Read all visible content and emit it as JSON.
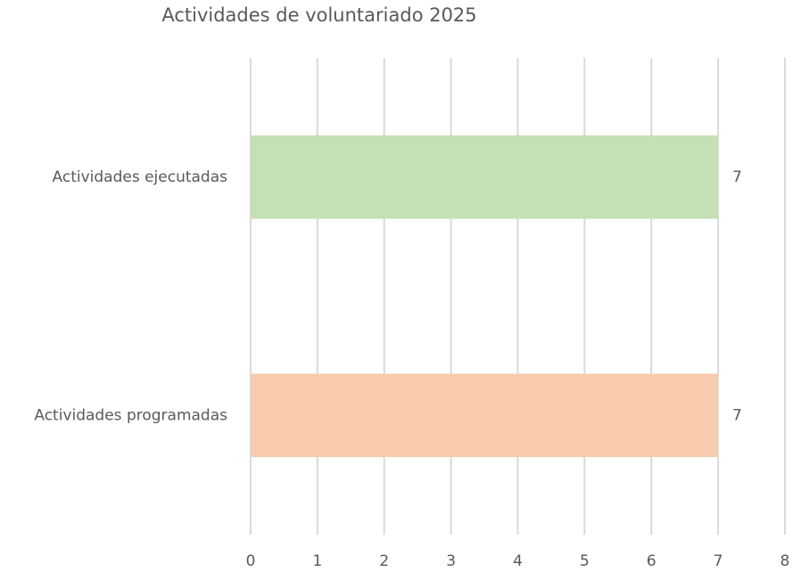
{
  "chart_data": {
    "type": "bar",
    "orientation": "horizontal",
    "title": "Actividades de voluntariado 2025",
    "categories": [
      "Actividades ejecutadas",
      "Actividades programadas"
    ],
    "values": [
      7,
      7
    ],
    "colors": [
      "#c5e0b4",
      "#f8cbad"
    ],
    "xlim": [
      0,
      8
    ],
    "xticks": [
      0,
      1,
      2,
      3,
      4,
      5,
      6,
      7,
      8
    ],
    "grid": true,
    "data_labels": true
  }
}
